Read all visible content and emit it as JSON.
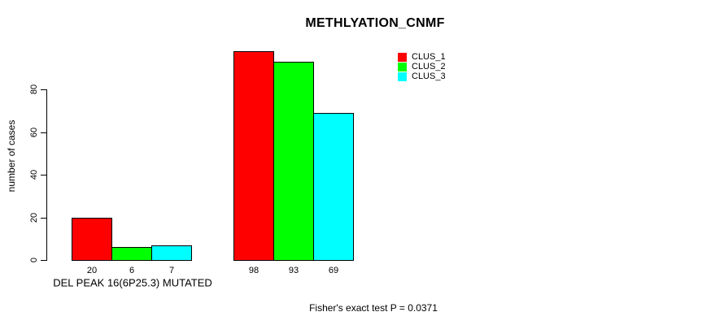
{
  "chart": {
    "title": "METHLYATION_CNMF",
    "ylabel": "number of cases",
    "group_label": "DEL PEAK 16(6P25.3) MUTATED",
    "footnote": "Fisher's exact test P = 0.0371"
  },
  "chart_data": {
    "type": "bar",
    "title": "METHLYATION_CNMF",
    "xlabel": "",
    "ylabel": "number of cases",
    "ylim": [
      0,
      100
    ],
    "yticks": [
      0,
      20,
      40,
      60,
      80
    ],
    "grid": false,
    "background": "#ffffff",
    "axis_color": "#000000",
    "legend_position": "top-right",
    "categories": [
      "DEL PEAK 16(6P25.3) MUTATED",
      ""
    ],
    "series": [
      {
        "name": "CLUS_1",
        "color": "#ff0000",
        "values": [
          20,
          98
        ]
      },
      {
        "name": "CLUS_2",
        "color": "#00ff00",
        "values": [
          6,
          93
        ]
      },
      {
        "name": "CLUS_3",
        "color": "#00ffff",
        "values": [
          7,
          69
        ]
      }
    ],
    "bar_value_labels": [
      [
        20,
        6,
        7
      ],
      [
        98,
        93,
        69
      ]
    ],
    "annotation": "Fisher's exact test P = 0.0371"
  }
}
